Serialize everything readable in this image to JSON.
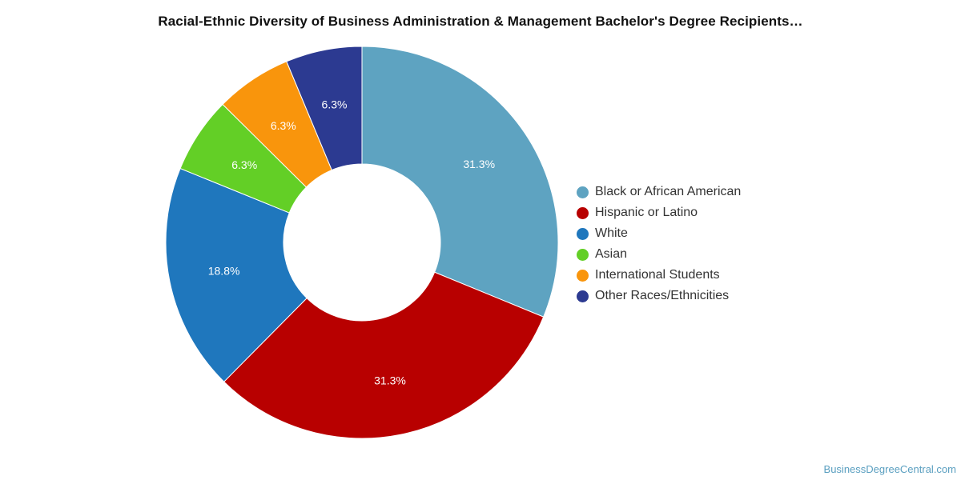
{
  "chart_data": {
    "type": "pie",
    "style": "donut",
    "title": "Racial-Ethnic Diversity of Business Administration & Management Bachelor's Degree Recipients…",
    "categories": [
      "Black or African American",
      "Hispanic or Latino",
      "White",
      "Asian",
      "International Students",
      "Other Races/Ethnicities"
    ],
    "values": [
      31.3,
      31.3,
      18.8,
      6.3,
      6.3,
      6.3
    ],
    "value_labels": [
      "31.3%",
      "31.3%",
      "18.8%",
      "6.3%",
      "6.3%",
      "6.3%"
    ],
    "colors": [
      "#5ea3c1",
      "#b80000",
      "#1f77bd",
      "#63cf26",
      "#f9950c",
      "#2c3a91"
    ],
    "legend_position": "right"
  },
  "watermark": "BusinessDegreeCentral.com"
}
